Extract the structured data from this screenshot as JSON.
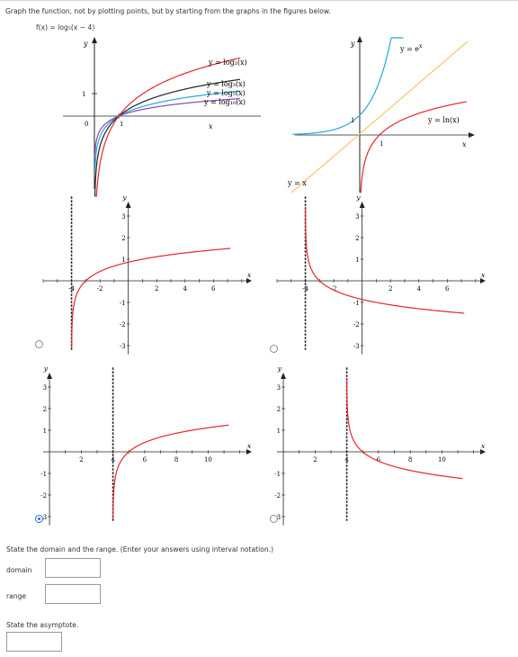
{
  "prompt": {
    "instruction": "Graph the function, not by plotting points, but by starting from the graphs in the figures below.",
    "function": "f(x) = log₅(x − 4)"
  },
  "reference_figures": {
    "left": {
      "labels": [
        "y = log₂(x)",
        "y = log₃(x)",
        "y = log₅(x)",
        "y = log₁₀(x)"
      ],
      "axis_x": "x",
      "axis_y": "y",
      "tick_y": "1",
      "tick_x": "1",
      "origin": "0",
      "colors": [
        "#e8262a",
        "#222222",
        "#23a7e0",
        "#8a45b8"
      ]
    },
    "right": {
      "label_exp": "y = e",
      "label_exp_sup": "x",
      "label_ln": "y = ln(x)",
      "label_identity": "y = x",
      "axis_x": "x",
      "axis_y": "y",
      "tick_y": "1",
      "tick_x": "1",
      "colors": {
        "exp": "#23a7e0",
        "ln": "#e8262a",
        "identity": "#f6c85f"
      }
    }
  },
  "options": [
    {
      "selected": false,
      "asymptote_x": -4,
      "curve": "increasing",
      "x_ticks": [
        "-4",
        "-2",
        "2",
        "4",
        "6"
      ],
      "y_ticks": [
        "3",
        "2",
        "1",
        "-1",
        "-2",
        "-3"
      ],
      "axis_x": "x",
      "axis_y": "y"
    },
    {
      "selected": false,
      "asymptote_x": -4,
      "curve": "decreasing",
      "x_ticks": [
        "-4",
        "-2",
        "2",
        "4",
        "6"
      ],
      "y_ticks": [
        "3",
        "2",
        "1",
        "-1",
        "-2",
        "-3"
      ],
      "axis_x": "x",
      "axis_y": "y"
    },
    {
      "selected": true,
      "asymptote_x": 4,
      "curve": "increasing",
      "x_ticks": [
        "2",
        "4",
        "6",
        "8",
        "10"
      ],
      "y_ticks": [
        "3",
        "2",
        "1",
        "-1",
        "-2",
        "-3"
      ],
      "axis_x": "x",
      "axis_y": "y"
    },
    {
      "selected": false,
      "asymptote_x": 4,
      "curve": "decreasing",
      "x_ticks": [
        "2",
        "4",
        "6",
        "8",
        "10"
      ],
      "y_ticks": [
        "3",
        "2",
        "1",
        "-1",
        "-2",
        "-3"
      ],
      "axis_x": "x",
      "axis_y": "y"
    }
  ],
  "questions": {
    "domain_range_prompt": "State the domain and the range. (Enter your answers using interval notation.)",
    "domain_label": "domain",
    "domain_value": "",
    "range_label": "range",
    "range_value": "",
    "asymptote_prompt": "State the asymptote.",
    "asymptote_value": ""
  }
}
